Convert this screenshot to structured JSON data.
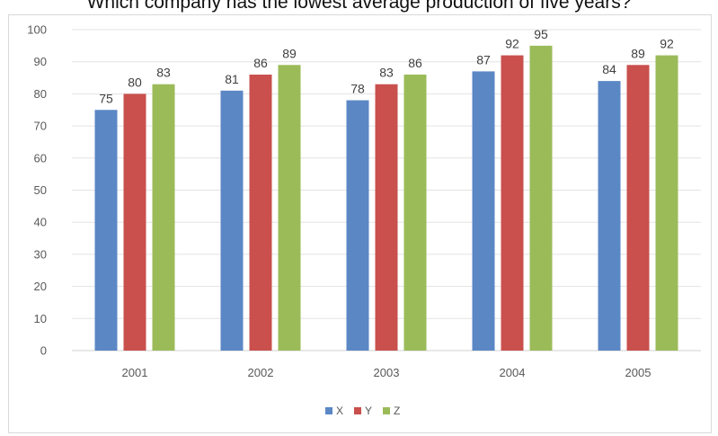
{
  "question": "Which company has the lowest average production of five years?",
  "chart_data": {
    "type": "bar",
    "title": "",
    "xlabel": "",
    "ylabel": "",
    "categories": [
      "2001",
      "2002",
      "2003",
      "2004",
      "2005"
    ],
    "series": [
      {
        "name": "X",
        "color": "#5b87c5",
        "values": [
          75,
          81,
          78,
          87,
          84
        ]
      },
      {
        "name": "Y",
        "color": "#c9504d",
        "values": [
          80,
          86,
          83,
          92,
          89
        ]
      },
      {
        "name": "Z",
        "color": "#9bbb59",
        "values": [
          83,
          89,
          86,
          95,
          92
        ]
      }
    ],
    "ylim": [
      0,
      100
    ],
    "yticks": [
      0,
      10,
      20,
      30,
      40,
      50,
      60,
      70,
      80,
      90,
      100
    ],
    "grid": true,
    "legend": "bottom"
  }
}
